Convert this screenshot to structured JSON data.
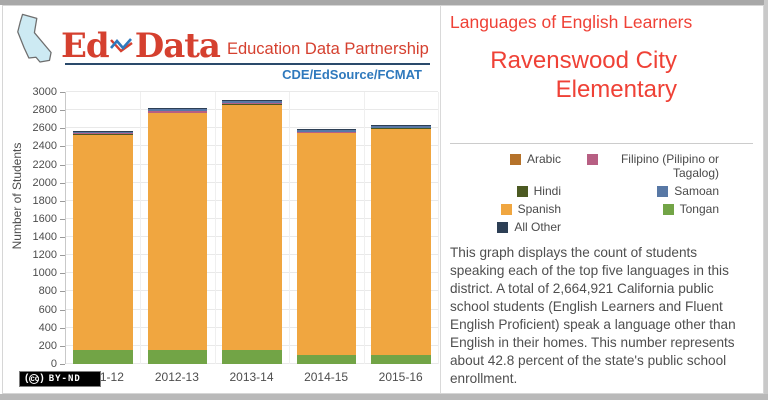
{
  "logo": {
    "name_part1": "Ed",
    "name_part2": "Data",
    "tagline": "Education Data Partnership",
    "orgs": "CDE/EdSource/FCMAT"
  },
  "header": {
    "page_title": "Languages of English Learners",
    "district_name": "Ravenswood City Elementary"
  },
  "description": "This graph displays the count of students speaking each of the top five languages in this district. A total of 2,664,921 California public school students (English Learners and Fluent English Proficient) speak a language other than English in their homes. This number represents about 42.8 percent of the state's public school enrollment.",
  "footer": {
    "cc_badge_label": "BY-ND",
    "cc_icon_text": "cc"
  },
  "colors": {
    "brand_red": "#d5402f",
    "title_red": "#ef4136",
    "brand_blue": "#2f79bd",
    "rule_navy": "#2a4a6b",
    "grid_gray": "#e9e9e9"
  },
  "legend": {
    "items": [
      {
        "label": "Arabic",
        "color": "#b5722a"
      },
      {
        "label": "Filipino (Pilipino or Tagalog)",
        "color": "#b75f83"
      },
      {
        "label": "Hindi",
        "color": "#4c5a22"
      },
      {
        "label": "Samoan",
        "color": "#5878a5"
      },
      {
        "label": "Spanish",
        "color": "#f0a640"
      },
      {
        "label": "Tongan",
        "color": "#72a446"
      },
      {
        "label": "All Other",
        "color": "#2d3f55"
      }
    ]
  },
  "chart_data": {
    "type": "bar",
    "stacked": true,
    "title": "Languages of English Learners",
    "xlabel": "",
    "ylabel": "Number of Students",
    "ylim": [
      0,
      3000
    ],
    "ytick_step": 200,
    "grid": true,
    "legend_position": "right-panel",
    "categories": [
      "2011-12",
      "2012-13",
      "2013-14",
      "2014-15",
      "2015-16"
    ],
    "series": [
      {
        "name": "Arabic",
        "color": "#b5722a",
        "values": [
          5,
          6,
          6,
          5,
          5
        ]
      },
      {
        "name": "Filipino (Pilipino or Tagalog)",
        "color": "#b75f83",
        "values": [
          10,
          12,
          12,
          10,
          8
        ]
      },
      {
        "name": "Hindi",
        "color": "#4c5a22",
        "values": [
          3,
          3,
          3,
          3,
          3
        ]
      },
      {
        "name": "Samoan",
        "color": "#5878a5",
        "values": [
          20,
          22,
          22,
          20,
          18
        ]
      },
      {
        "name": "Spanish",
        "color": "#f0a640",
        "values": [
          2365,
          2610,
          2705,
          2450,
          2490
        ]
      },
      {
        "name": "Tongan",
        "color": "#72a446",
        "values": [
          160,
          155,
          150,
          95,
          100
        ]
      },
      {
        "name": "All Other",
        "color": "#2d3f55",
        "values": [
          12,
          12,
          12,
          12,
          12
        ]
      }
    ],
    "stack_order_bottom_to_top": [
      "Tongan",
      "Spanish",
      "Arabic",
      "Hindi",
      "Filipino (Pilipino or Tagalog)",
      "Samoan",
      "All Other"
    ],
    "totals": [
      2575,
      2820,
      2910,
      2595,
      2636
    ]
  }
}
